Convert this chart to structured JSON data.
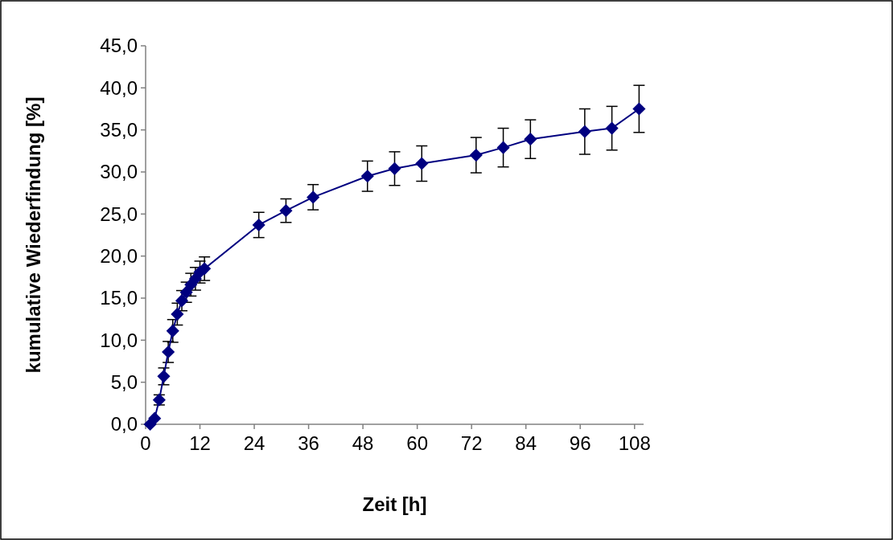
{
  "chart_data": {
    "type": "line",
    "xlabel": "Zeit [h]",
    "ylabel": "kumulative Wiederfindung [%]",
    "xlim": [
      0,
      110
    ],
    "xticks": [
      0,
      12,
      24,
      36,
      48,
      60,
      72,
      84,
      96,
      108
    ],
    "ylim": [
      0,
      45
    ],
    "yticks": [
      {
        "value": 0,
        "label": "0,0"
      },
      {
        "value": 5,
        "label": "5,0"
      },
      {
        "value": 10,
        "label": "10,0"
      },
      {
        "value": 15,
        "label": "15,0"
      },
      {
        "value": 20,
        "label": "20,0"
      },
      {
        "value": 25,
        "label": "25,0"
      },
      {
        "value": 30,
        "label": "30,0"
      },
      {
        "value": 35,
        "label": "35,0"
      },
      {
        "value": 40,
        "label": "40,0"
      },
      {
        "value": 45,
        "label": "45,0"
      }
    ],
    "x": [
      1,
      2,
      3,
      4,
      5,
      6,
      7,
      8,
      9,
      10,
      11,
      12,
      13,
      25,
      31,
      37,
      49,
      55,
      61,
      73,
      79,
      85,
      97,
      103,
      109
    ],
    "series": [
      {
        "color": "#000080",
        "values": [
          0.0,
          0.7,
          2.9,
          5.7,
          8.6,
          11.1,
          13.1,
          14.7,
          15.7,
          16.6,
          17.3,
          18.1,
          18.5,
          23.7,
          25.4,
          27.0,
          29.5,
          30.4,
          31.0,
          32.0,
          32.9,
          33.9,
          34.8,
          35.2,
          37.5
        ],
        "errors": [
          null,
          null,
          0.6,
          1.0,
          1.25,
          1.35,
          1.3,
          1.2,
          1.2,
          1.35,
          1.35,
          1.3,
          1.4,
          1.5,
          1.4,
          1.5,
          1.8,
          2.0,
          2.1,
          2.1,
          2.3,
          2.3,
          2.7,
          2.6,
          2.8
        ]
      }
    ],
    "marker": "diamond",
    "grid": false
  }
}
